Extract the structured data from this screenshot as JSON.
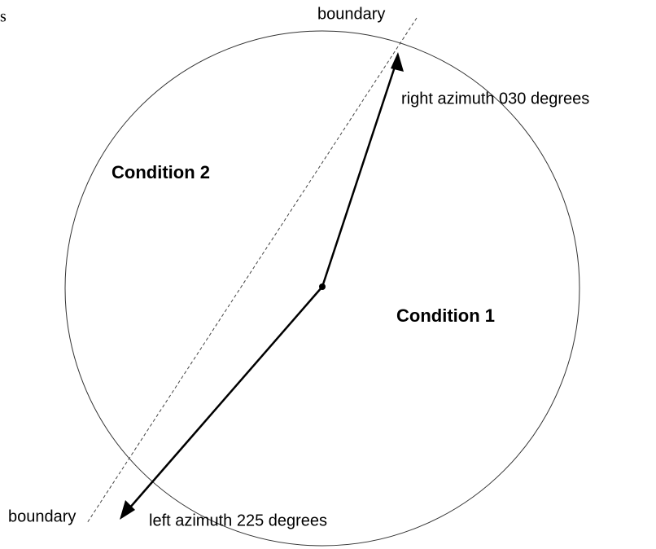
{
  "fragment": "s",
  "boundary_top": "boundary",
  "boundary_bottom": "boundary",
  "right_azimuth": "right azimuth 030 degrees",
  "left_azimuth": "left azimuth 225 degrees",
  "condition_1": "Condition 1",
  "condition_2": "Condition 2"
}
